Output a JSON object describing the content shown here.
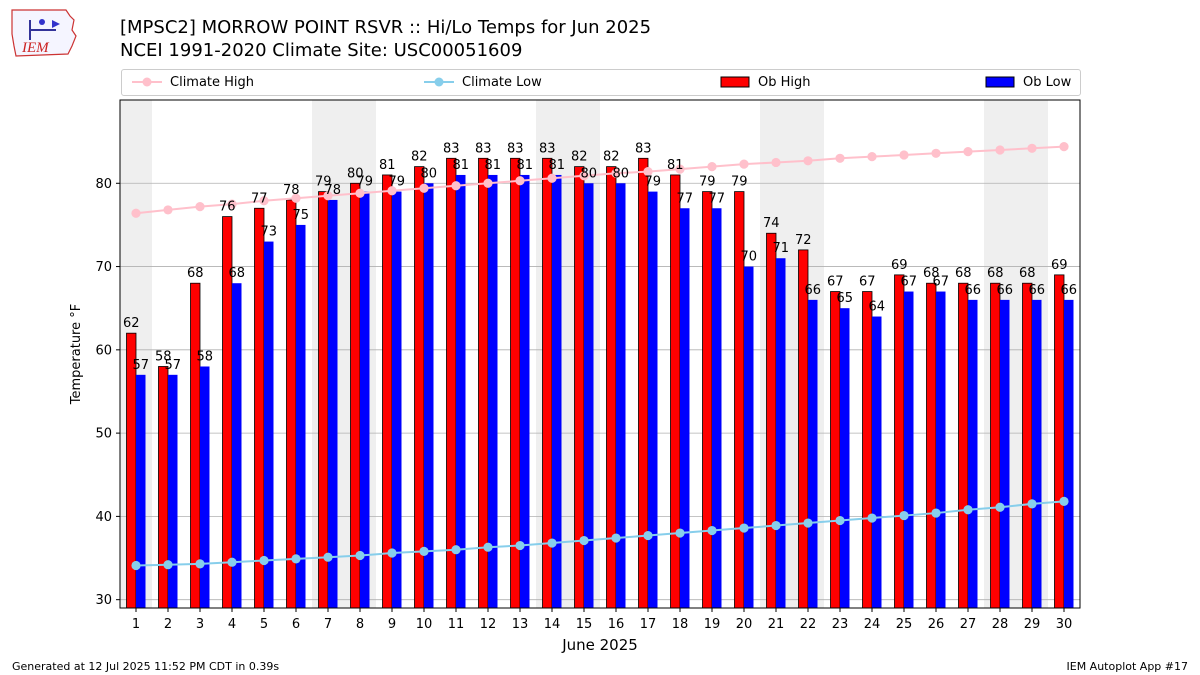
{
  "header": {
    "title_line1": "[MPSC2] MORROW POINT RSVR :: Hi/Lo Temps for Jun 2025",
    "title_line2": "NCEI 1991-2020 Climate Site: USC00051609",
    "logo_text": "IEM"
  },
  "legend": {
    "climate_high": "Climate High",
    "climate_low": "Climate Low",
    "ob_high": "Ob High",
    "ob_low": "Ob Low"
  },
  "footer": {
    "generated": "Generated at 12 Jul 2025 11:52 PM CDT in 0.39s",
    "app": "IEM Autoplot App #17"
  },
  "colors": {
    "ob_high": "#ff0000",
    "ob_low": "#0000ff",
    "climate_high": "#ffc0cb",
    "climate_low": "#87ceeb",
    "weekend_shade": "#efefef"
  },
  "chart_data": {
    "type": "bar",
    "xlabel": "June 2025",
    "ylabel": "Temperature °F",
    "ylim": [
      29,
      90
    ],
    "yticks": [
      30,
      40,
      50,
      60,
      70,
      80
    ],
    "grid": true,
    "legend_position": "top",
    "categories": [
      "1",
      "2",
      "3",
      "4",
      "5",
      "6",
      "7",
      "8",
      "9",
      "10",
      "11",
      "12",
      "13",
      "14",
      "15",
      "16",
      "17",
      "18",
      "19",
      "20",
      "21",
      "22",
      "23",
      "24",
      "25",
      "26",
      "27",
      "28",
      "29",
      "30"
    ],
    "shaded_days": [
      1,
      7,
      8,
      14,
      15,
      21,
      22,
      28,
      29
    ],
    "series": [
      {
        "name": "Ob High",
        "kind": "bar",
        "values": [
          62,
          58,
          68,
          76,
          77,
          78,
          79,
          80,
          81,
          82,
          83,
          83,
          83,
          83,
          82,
          82,
          83,
          81,
          79,
          79,
          74,
          72,
          67,
          67,
          69,
          68,
          68,
          68,
          68,
          69
        ]
      },
      {
        "name": "Ob Low",
        "kind": "bar",
        "values": [
          57,
          57,
          58,
          68,
          73,
          75,
          78,
          79,
          79,
          80,
          81,
          81,
          81,
          81,
          80,
          80,
          79,
          77,
          77,
          70,
          71,
          66,
          65,
          64,
          67,
          67,
          66,
          66,
          66,
          66
        ]
      },
      {
        "name": "Climate High",
        "kind": "line",
        "values": [
          76.4,
          76.8,
          77.2,
          77.5,
          77.9,
          78.2,
          78.5,
          78.8,
          79.1,
          79.4,
          79.7,
          80.0,
          80.3,
          80.6,
          80.9,
          81.2,
          81.4,
          81.7,
          82.0,
          82.3,
          82.5,
          82.7,
          83.0,
          83.2,
          83.4,
          83.6,
          83.8,
          84.0,
          84.2,
          84.4
        ]
      },
      {
        "name": "Climate Low",
        "kind": "line",
        "values": [
          34.1,
          34.2,
          34.3,
          34.5,
          34.7,
          34.9,
          35.1,
          35.3,
          35.6,
          35.8,
          36.0,
          36.3,
          36.5,
          36.8,
          37.1,
          37.4,
          37.7,
          38.0,
          38.3,
          38.6,
          38.9,
          39.2,
          39.5,
          39.8,
          40.1,
          40.4,
          40.8,
          41.1,
          41.5,
          41.8
        ]
      }
    ]
  }
}
